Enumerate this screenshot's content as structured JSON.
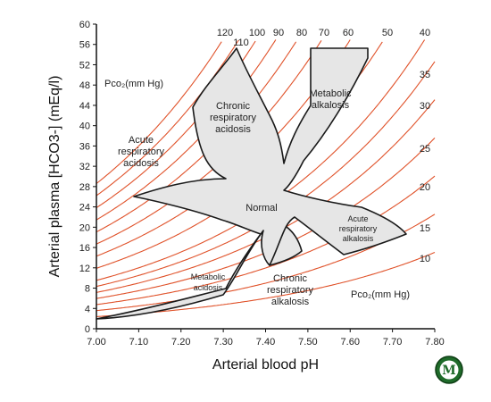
{
  "chart_data": {
    "type": "diagram",
    "xlabel": "Arterial blood pH",
    "ylabel": "Arterial plasma [HCO3-] (mEq/l)",
    "xlim": [
      7.0,
      7.8
    ],
    "ylim": [
      0,
      60
    ],
    "xticks": [
      "7.00",
      "7.10",
      "7.20",
      "7.30",
      "7.40",
      "7.50",
      "7.60",
      "7.70",
      "7.80"
    ],
    "yticks": [
      "0",
      "4",
      "8",
      "12",
      "16",
      "20",
      "24",
      "28",
      "32",
      "36",
      "40",
      "44",
      "48",
      "52",
      "56",
      "60"
    ],
    "isobar_legend": "Pco₂(mm Hg)",
    "isobars": [
      10,
      15,
      20,
      25,
      30,
      35,
      40,
      50,
      60,
      70,
      80,
      90,
      100,
      110,
      120
    ],
    "isobar_labels_top": [
      "120",
      "110",
      "100",
      "90",
      "80",
      "70",
      "60",
      "50",
      "40"
    ],
    "isobar_labels_right": [
      "35",
      "30",
      "25",
      "20",
      "15",
      "10"
    ],
    "regions": [
      {
        "name": "Normal",
        "label": "Normal"
      },
      {
        "name": "chronic-respiratory-acidosis",
        "lines": [
          "Chronic",
          "respiratory",
          "acidosis"
        ]
      },
      {
        "name": "metabolic-alkalosis",
        "lines": [
          "Metabolic",
          "alkalosis"
        ]
      },
      {
        "name": "acute-respiratory-acidosis",
        "lines": [
          "Acute",
          "respiratory",
          "acidosis"
        ]
      },
      {
        "name": "acute-respiratory-alkalosis",
        "lines": [
          "Acute",
          "respiratory",
          "alkalosis"
        ]
      },
      {
        "name": "metabolic-acidosis",
        "lines": [
          "Metabolic",
          "acidosis"
        ]
      },
      {
        "name": "chronic-respiratory-alkalosis",
        "lines": [
          "Chronic",
          "respiratory",
          "alkalosis"
        ]
      }
    ],
    "colors": {
      "isobar": "#e0522a",
      "region_fill": "#e6e6e6",
      "region_stroke": "#1a1a1a",
      "axis": "#111111"
    }
  },
  "logo": {
    "letter": "M",
    "colors": {
      "ring": "#1f6b2a",
      "inner": "#ffffff"
    }
  }
}
